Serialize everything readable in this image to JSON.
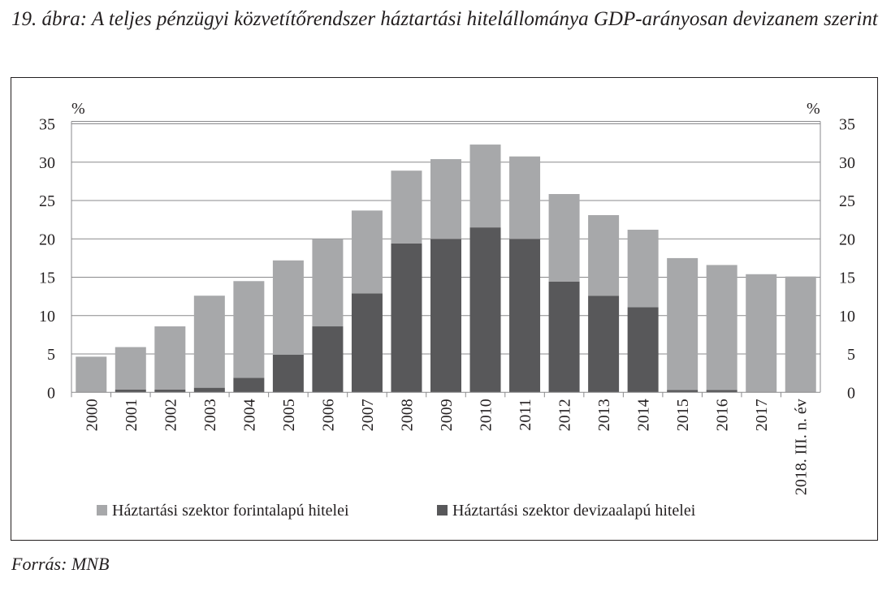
{
  "title": "19. ábra: A teljes pénzügyi közvetítőrendszer háztartási hitelállománya GDP-arányosan devizanem szerint",
  "source": "Forrás: MNB",
  "chart_data": {
    "type": "bar",
    "stacked": true,
    "categories": [
      "2000",
      "2001",
      "2002",
      "2003",
      "2004",
      "2005",
      "2006",
      "2007",
      "2008",
      "2009",
      "2010",
      "2011",
      "2012",
      "2013",
      "2014",
      "2015",
      "2016",
      "2017",
      "2018. III. n. év"
    ],
    "series": [
      {
        "name": "Háztartási szektor devizaalapú hitelei",
        "color": "#58585a",
        "values": [
          0,
          0.35,
          0.35,
          0.6,
          1.9,
          4.9,
          8.6,
          12.9,
          19.4,
          20.0,
          21.5,
          20.0,
          14.45,
          12.6,
          11.1,
          0.3,
          0.3,
          0,
          0
        ]
      },
      {
        "name": "Háztartási szektor forintalapú hitelei",
        "color": "#a7a8aa",
        "values": [
          4.65,
          5.55,
          8.25,
          12.0,
          12.6,
          12.3,
          11.4,
          10.8,
          9.5,
          10.4,
          10.8,
          10.75,
          11.4,
          10.5,
          10.1,
          17.2,
          16.3,
          15.4,
          15.1
        ]
      }
    ],
    "ylabel_left": "%",
    "ylabel_right": "%",
    "ylim": [
      0,
      35
    ],
    "yticks": [
      "0",
      "5",
      "10",
      "15",
      "20",
      "25",
      "30",
      "35"
    ],
    "grid": true,
    "legend": {
      "position": "bottom",
      "items": [
        "Háztartási szektor forintalapú hitelei",
        "Háztartási szektor devizaalapú hitelei"
      ]
    }
  }
}
